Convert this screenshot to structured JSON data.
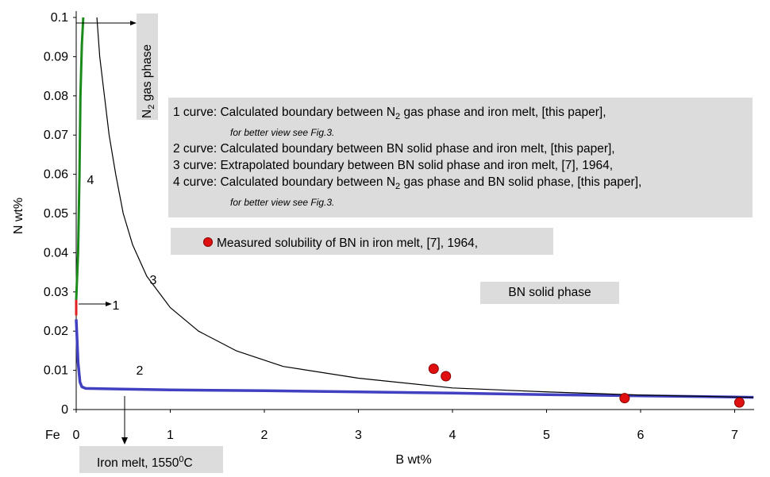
{
  "chart_data": {
    "type": "line",
    "xlabel": "B wt%",
    "ylabel": "N wt%",
    "xlim": [
      0,
      7.2
    ],
    "ylim": [
      0,
      0.1
    ],
    "x_ticks": [
      "0",
      "1",
      "2",
      "3",
      "4",
      "5",
      "6",
      "7"
    ],
    "y_ticks": [
      "0",
      "0.01",
      "0.02",
      "0.03",
      "0.04",
      "0.05",
      "0.06",
      "0.07",
      "0.08",
      "0.09",
      "0.1"
    ],
    "origin_label": "Fe",
    "grid": false,
    "series": [
      {
        "name": "1",
        "color": "#e02020",
        "points": [
          [
            0.0,
            0.024
          ],
          [
            0.0,
            0.028
          ]
        ]
      },
      {
        "name": "2",
        "color": "#4040c0",
        "points": [
          [
            0.0,
            0.023
          ],
          [
            0.02,
            0.012
          ],
          [
            0.04,
            0.007
          ],
          [
            0.06,
            0.0058
          ],
          [
            0.1,
            0.0054
          ],
          [
            0.5,
            0.0052
          ],
          [
            1,
            0.005
          ],
          [
            2,
            0.0048
          ],
          [
            3,
            0.0045
          ],
          [
            4,
            0.0042
          ],
          [
            5,
            0.0038
          ],
          [
            6,
            0.0035
          ],
          [
            7,
            0.0032
          ],
          [
            7.2,
            0.0031
          ]
        ]
      },
      {
        "name": "3",
        "color": "#000000",
        "points": [
          [
            0.22,
            0.1
          ],
          [
            0.25,
            0.09
          ],
          [
            0.3,
            0.08
          ],
          [
            0.35,
            0.07
          ],
          [
            0.42,
            0.06
          ],
          [
            0.5,
            0.05
          ],
          [
            0.6,
            0.042
          ],
          [
            0.75,
            0.034
          ],
          [
            1.0,
            0.026
          ],
          [
            1.3,
            0.02
          ],
          [
            1.7,
            0.015
          ],
          [
            2.2,
            0.011
          ],
          [
            3.0,
            0.008
          ],
          [
            4.0,
            0.0055
          ],
          [
            5.0,
            0.0045
          ],
          [
            6.0,
            0.0037
          ],
          [
            7.0,
            0.0032
          ],
          [
            7.2,
            0.0031
          ]
        ]
      },
      {
        "name": "4",
        "color": "#1a8a1a",
        "points": [
          [
            0.0,
            0.028
          ],
          [
            0.02,
            0.04
          ],
          [
            0.035,
            0.06
          ],
          [
            0.045,
            0.08
          ],
          [
            0.06,
            0.093
          ],
          [
            0.075,
            0.1
          ]
        ]
      }
    ],
    "measured_points": [
      {
        "x": 3.8,
        "y": 0.0104
      },
      {
        "x": 3.93,
        "y": 0.0085
      },
      {
        "x": 5.83,
        "y": 0.0029
      },
      {
        "x": 7.05,
        "y": 0.0018
      }
    ],
    "curve_labels": [
      "1",
      "2",
      "3",
      "4"
    ]
  },
  "legend": {
    "rows": [
      {
        "prefix": "1 curve: Calculated boundary between N",
        "sub": "2",
        "suffix": " gas phase and iron melt, [this paper],"
      },
      {
        "note": "for better view see Fig.3."
      },
      {
        "prefix": "2 curve: Calculated boundary between BN solid phase and iron melt, [this paper],"
      },
      {
        "prefix": "3 curve: Extrapolated boundary between BN solid phase and iron melt, [7], 1964,"
      },
      {
        "prefix": "4 curve: Calculated boundary between N",
        "sub": "2",
        "suffix": " gas phase and BN solid phase, [this paper],"
      },
      {
        "note": "for better view see Fig.3."
      }
    ],
    "measured": "Measured solubility of BN in iron melt, [7], 1964,"
  },
  "regions": {
    "bn_solid": "BN solid phase",
    "n2_gas_prefix": "N",
    "n2_gas_sub": "2",
    "n2_gas_suffix": " gas phase",
    "iron_melt_prefix": "Iron melt, 1550",
    "iron_melt_sup": "0",
    "iron_melt_suffix": "C"
  }
}
